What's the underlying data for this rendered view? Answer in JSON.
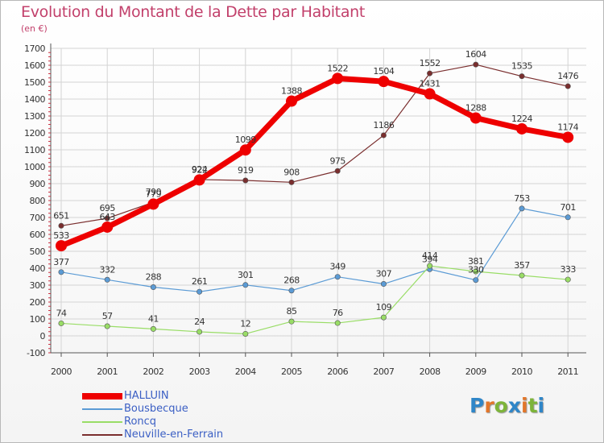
{
  "header": {
    "title": "Evolution du Montant de la Dette par Habitant",
    "subtitle": "(en €)"
  },
  "logo": {
    "text": "Proxiti",
    "colors": [
      "#2f86c8",
      "#e2762a",
      "#7db43a",
      "#2f86c8",
      "#e2762a",
      "#7db43a",
      "#2f86c8"
    ]
  },
  "chart_data": {
    "type": "line",
    "title": "Evolution du Montant de la Dette par Habitant",
    "subtitle": "(en €)",
    "xlabel": "",
    "ylabel": "",
    "x": [
      "2000",
      "2001",
      "2002",
      "2003",
      "2004",
      "2005",
      "2006",
      "2007",
      "2008",
      "2009",
      "2010",
      "2011"
    ],
    "ylim": [
      -100,
      1700
    ],
    "yticks": [
      -100,
      0,
      100,
      200,
      300,
      400,
      500,
      600,
      700,
      800,
      900,
      1000,
      1100,
      1200,
      1300,
      1400,
      1500,
      1600,
      1700
    ],
    "grid": true,
    "legend_position": "bottom-left",
    "series": [
      {
        "name": "HALLUIN",
        "color": "#ee0000",
        "values": [
          533,
          643,
          779,
          922,
          1099,
          1388,
          1522,
          1504,
          1431,
          1288,
          1224,
          1174
        ]
      },
      {
        "name": "Bousbecque",
        "color": "#5b9bd5",
        "values": [
          377,
          332,
          288,
          261,
          301,
          268,
          349,
          307,
          394,
          330,
          753,
          701
        ]
      },
      {
        "name": "Roncq",
        "color": "#99dd66",
        "values": [
          74,
          57,
          41,
          24,
          12,
          85,
          76,
          109,
          414,
          381,
          357,
          333
        ]
      },
      {
        "name": "Neuville-en-Ferrain",
        "color": "#7a2e2e",
        "values": [
          651,
          695,
          790,
          924,
          919,
          908,
          975,
          1186,
          1552,
          1604,
          1535,
          1476
        ]
      }
    ]
  }
}
